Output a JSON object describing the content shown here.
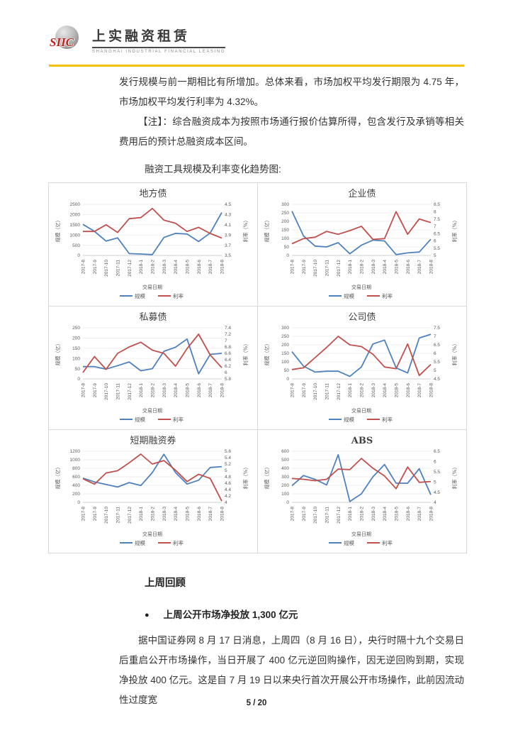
{
  "header": {
    "logo_siic": "SIIC",
    "logo_cn": "上实融资租赁",
    "logo_en": "SHANGHAI INDUSTRIAL FINANCIAL LEASING",
    "rule_color": "#f2c100"
  },
  "intro": {
    "p1": "发行规模与前一期相比有所增加。总体来看，市场加权平均发行期限为 4.75 年，市场加权平均发行利率为 4.32%。",
    "note": "【注】：综合融资成本为按照市场通行报价估算所得，包含发行及承销等相关费用后的预计总融资成本区间。",
    "charts_title": "融资工具规模及利率变化趋势图:"
  },
  "review": {
    "heading": "上周回顾",
    "bullet_marker": "●",
    "bullet": "上周公开市场净投放 1,300 亿元",
    "para": "据中国证券网 8 月 17 日消息，上周四（8 月 16 日），央行时隔十九个交易日后重启公开市场操作，当日开展了 400 亿元逆回购操作，因无逆回购到期，实现净投放 400 亿元。这是自 7 月 19 日以来央行首次开展公开市场操作，此前因流动性过度宽"
  },
  "footer": {
    "page": "5 / 20"
  },
  "chart_data": {
    "type": "line",
    "categories": [
      "2017-8",
      "2017-9",
      "2017-10",
      "2017-11",
      "2017-12",
      "2018-1",
      "2018-2",
      "2018-3",
      "2018-4",
      "2018-5",
      "2018-6",
      "2018-7",
      "2018-8"
    ],
    "x_title": "交易日期",
    "left_axis_label": "规模（亿）",
    "right_axis_label": "利率（%）",
    "legend": [
      "规模",
      "利率"
    ],
    "colors": {
      "scale": "#4f81bd",
      "rate": "#c0504d",
      "grid": "#e9e9e9",
      "axis": "#bfbfbf"
    },
    "legend_position": "bottom",
    "grid": true,
    "charts": [
      {
        "id": "local-government-bond",
        "title": "地方债",
        "left_ticks": [
          0,
          500,
          1000,
          1500,
          2000,
          2500
        ],
        "right_ticks": [
          3.5,
          3.7,
          3.9,
          4.1,
          4.3,
          4.5
        ],
        "series": [
          {
            "name": "规模",
            "axis": "left",
            "values": [
              1520,
              1180,
              700,
              860,
              90,
              70,
              40,
              880,
              1080,
              1050,
              680,
              1100,
              2100
            ]
          },
          {
            "name": "利率",
            "axis": "right",
            "values": [
              3.97,
              3.97,
              4.1,
              3.95,
              4.22,
              4.24,
              4.42,
              4.19,
              4.13,
              3.97,
              4.05,
              3.93,
              3.84
            ]
          }
        ]
      },
      {
        "id": "enterprise-bond",
        "title": "企业债",
        "left_ticks": [
          0,
          50,
          100,
          150,
          200,
          250,
          300
        ],
        "right_ticks": [
          5,
          5.5,
          6,
          6.5,
          7,
          7.5,
          8,
          8.5
        ],
        "series": [
          {
            "name": "规模",
            "axis": "left",
            "values": [
              260,
              115,
              55,
              50,
              75,
              10,
              60,
              90,
              85,
              5,
              15,
              20,
              95
            ]
          },
          {
            "name": "利率",
            "axis": "right",
            "values": [
              5.8,
              6.15,
              6.25,
              6.65,
              6.45,
              6.7,
              7.0,
              6.1,
              6.15,
              8.0,
              6.45,
              7.5,
              7.25
            ]
          }
        ]
      },
      {
        "id": "private-placement-bond",
        "title": "私募债",
        "left_ticks": [
          0,
          50,
          100,
          150,
          200,
          250
        ],
        "right_ticks": [
          5.8,
          6,
          6.2,
          6.4,
          6.6,
          6.8,
          7,
          7.2,
          7.4
        ],
        "series": [
          {
            "name": "规模",
            "axis": "left",
            "values": [
              60,
              60,
              48,
              65,
              83,
              40,
              50,
              135,
              155,
              195,
              25,
              120,
              125
            ]
          },
          {
            "name": "利率",
            "axis": "right",
            "values": [
              6.0,
              6.5,
              6.1,
              6.6,
              6.8,
              6.95,
              6.7,
              6.6,
              6.2,
              6.75,
              7.2,
              6.55,
              6.15
            ]
          }
        ]
      },
      {
        "id": "corporate-bond",
        "title": "公司债",
        "left_ticks": [
          0,
          50,
          100,
          150,
          200,
          250,
          300
        ],
        "right_ticks": [
          4.5,
          5,
          5.5,
          6,
          6.5,
          7,
          7.5
        ],
        "series": [
          {
            "name": "规模",
            "axis": "left",
            "values": [
              160,
              75,
              40,
              45,
              45,
              15,
              70,
              205,
              228,
              65,
              35,
              240,
              262
            ]
          },
          {
            "name": "利率",
            "axis": "right",
            "values": [
              5.05,
              5.15,
              5.75,
              6.35,
              7.0,
              6.5,
              6.4,
              5.95,
              5.2,
              5.1,
              6.55,
              4.7,
              5.35
            ]
          }
        ]
      },
      {
        "id": "short-term-commercial-paper",
        "title": "短期融资券",
        "left_ticks": [
          0,
          200,
          400,
          600,
          800,
          1000,
          1200
        ],
        "right_ticks": [
          4,
          4.2,
          4.4,
          4.6,
          4.8,
          5,
          5.2,
          5.4,
          5.6
        ],
        "series": [
          {
            "name": "规模",
            "axis": "left",
            "values": [
              570,
              480,
              420,
              360,
              465,
              395,
              700,
              1130,
              700,
              430,
              520,
              820,
              840
            ]
          },
          {
            "name": "利率",
            "axis": "right",
            "values": [
              4.74,
              4.57,
              4.92,
              4.99,
              5.24,
              5.51,
              5.2,
              5.31,
              5.01,
              4.65,
              4.88,
              4.75,
              4.04
            ]
          }
        ]
      },
      {
        "id": "abs",
        "title": "ABS",
        "left_ticks": [
          0,
          100,
          200,
          300,
          400,
          500,
          600
        ],
        "right_ticks": [
          4,
          4.5,
          5,
          5.5,
          6,
          6.5
        ],
        "series": [
          {
            "name": "规模",
            "axis": "left",
            "values": [
              195,
              315,
              270,
              205,
              560,
              10,
              100,
              300,
              445,
              225,
              225,
              395,
              90
            ]
          },
          {
            "name": "利率",
            "axis": "right",
            "values": [
              5.17,
              5.13,
              5.06,
              5.13,
              5.63,
              5.6,
              6.15,
              5.67,
              5.29,
              4.67,
              5.73,
              4.98,
              5.02
            ]
          }
        ]
      }
    ]
  }
}
